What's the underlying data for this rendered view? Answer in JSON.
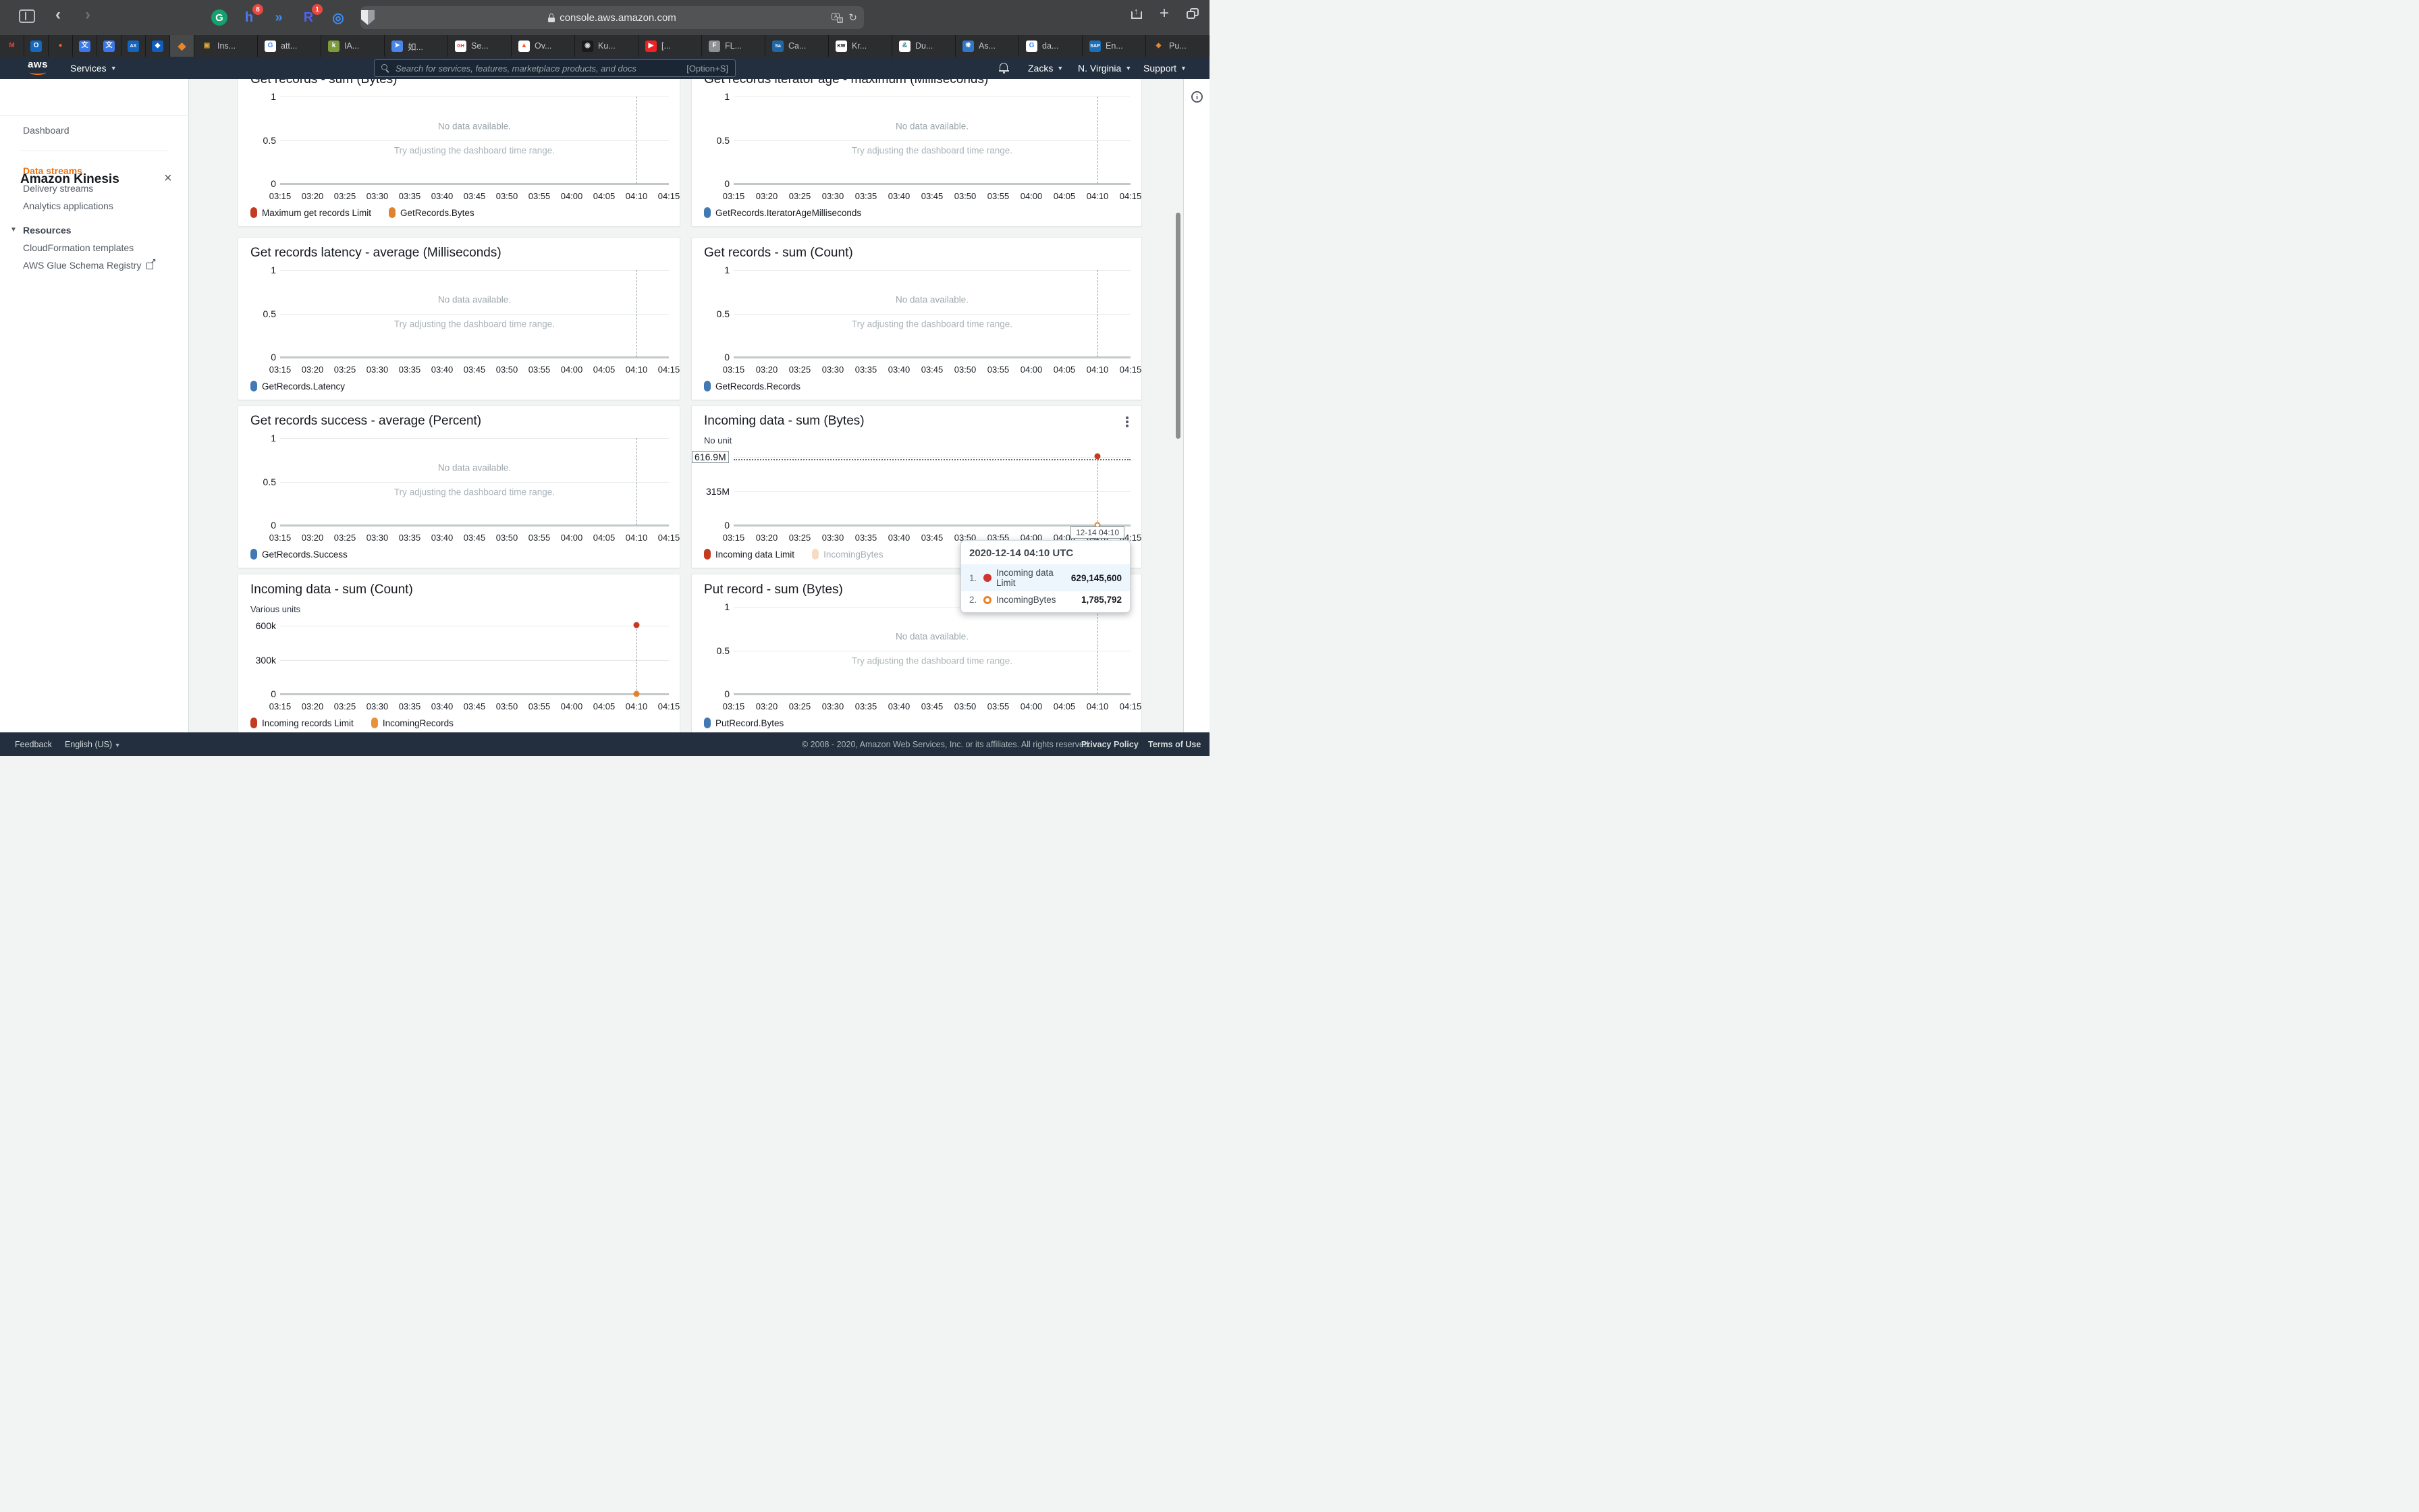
{
  "browser": {
    "url": "console.aws.amazon.com",
    "pinned_tabs": [
      {
        "name": "mail-m",
        "glyph": "M",
        "fg": "#e8453c",
        "bg": "transparent"
      },
      {
        "name": "outlook",
        "glyph": "O",
        "fg": "#ffffff",
        "bg": "#1269bf"
      },
      {
        "name": "flame",
        "glyph": "●",
        "fg": "#e8632c",
        "bg": "transparent"
      },
      {
        "name": "translate-1",
        "glyph": "文",
        "fg": "#ffffff",
        "bg": "#3b78e7"
      },
      {
        "name": "translate-2",
        "glyph": "文",
        "fg": "#ffffff",
        "bg": "#3b78e7"
      },
      {
        "name": "amex",
        "glyph": "AX",
        "fg": "#ffffff",
        "bg": "#1465c0"
      },
      {
        "name": "chase",
        "glyph": "◆",
        "fg": "#ffffff",
        "bg": "#0f5dbc"
      }
    ],
    "active_tab": {
      "name": "aws-console-active",
      "glyph": "◆",
      "fg": "#e8862c",
      "bg": "transparent"
    },
    "tabs": [
      {
        "label": "Ins...",
        "glyph": "▣",
        "fg": "#d9a43b",
        "bg": "transparent"
      },
      {
        "label": "att...",
        "glyph": "G",
        "fg": "#4285f4",
        "bg": "#ffffff"
      },
      {
        "label": "IA...",
        "glyph": "k",
        "fg": "#ffffff",
        "bg": "#7c9c3c"
      },
      {
        "label": "如...",
        "glyph": "➤",
        "fg": "#ffffff",
        "bg": "#4a86e8"
      },
      {
        "label": "Se...",
        "glyph": "GH",
        "fg": "#e0301e",
        "bg": "#ffffff"
      },
      {
        "label": "Ov...",
        "glyph": "▲",
        "fg": "#f2662c",
        "bg": "#ffffff"
      },
      {
        "label": "Ku...",
        "glyph": "◉",
        "fg": "#dddddd",
        "bg": "#1a1a1a"
      },
      {
        "label": "[...",
        "glyph": "▶",
        "fg": "#ffffff",
        "bg": "#ee2222"
      },
      {
        "label": "FL...",
        "glyph": "F",
        "fg": "#ffffff",
        "bg": "#8e9094"
      },
      {
        "label": "Ca...",
        "glyph": "Sa",
        "fg": "#ffffff",
        "bg": "#2166a3"
      },
      {
        "label": "Kr...",
        "glyph": "KW",
        "fg": "#000000",
        "bg": "#ffffff"
      },
      {
        "label": "Du...",
        "glyph": "&",
        "fg": "#2e7d8c",
        "bg": "#ffffff"
      },
      {
        "label": "As...",
        "glyph": "❋",
        "fg": "#ffffff",
        "bg": "#3079c7"
      },
      {
        "label": "da...",
        "glyph": "G",
        "fg": "#4285f4",
        "bg": "#ffffff"
      },
      {
        "label": "En...",
        "glyph": "SAP",
        "fg": "#ffffff",
        "bg": "#1b70b8"
      },
      {
        "label": "Pu...",
        "glyph": "◆",
        "fg": "#e8862c",
        "bg": "transparent"
      }
    ],
    "extensions": [
      {
        "name": "grammarly",
        "glyph": "G",
        "fg": "#ffffff",
        "bg": "#15a06e",
        "badge": "",
        "shape": "disc"
      },
      {
        "name": "honey",
        "glyph": "h",
        "fg": "#4b7bf5",
        "bg": "transparent",
        "badge": "8",
        "shape": "glyph"
      },
      {
        "name": "autoplay",
        "glyph": "»",
        "fg": "#3f8cf3",
        "bg": "transparent",
        "badge": "",
        "shape": "glyph"
      },
      {
        "name": "rakuten",
        "glyph": "R",
        "fg": "#4f63f2",
        "bg": "transparent",
        "badge": "1",
        "shape": "glyph"
      },
      {
        "name": "ring",
        "glyph": "◎",
        "fg": "#3f8cf3",
        "bg": "transparent",
        "badge": "",
        "shape": "glyph"
      },
      {
        "name": "shield",
        "glyph": "",
        "fg": "#b9bcc0",
        "bg": "transparent",
        "badge": "",
        "shape": "shield"
      }
    ]
  },
  "aws_nav": {
    "services": "Services",
    "search_placeholder": "Search for services, features, marketplace products, and docs",
    "shortcut": "[Option+S]",
    "account": "Zacks",
    "region": "N. Virginia",
    "support": "Support"
  },
  "sidebar": {
    "title": "Amazon Kinesis",
    "close": "×",
    "dashboard": "Dashboard",
    "data_streams": "Data streams",
    "delivery_streams": "Delivery streams",
    "analytics": "Analytics applications",
    "resources": "Resources",
    "cloudformation": "CloudFormation templates",
    "glue": "AWS Glue Schema Registry"
  },
  "empty_state": {
    "line1": "No data available.",
    "line2": "Try adjusting the dashboard time range."
  },
  "time_axis": [
    "03:15",
    "03:20",
    "03:25",
    "03:30",
    "03:35",
    "03:40",
    "03:45",
    "03:50",
    "03:55",
    "04:00",
    "04:05",
    "04:10",
    "04:15"
  ],
  "chart_data": [
    {
      "type": "line",
      "title": "Get records - sum (Bytes)",
      "y_ticks": [
        "1",
        "0.5",
        "0"
      ],
      "empty": true,
      "legend": [
        {
          "label": "Maximum get records Limit",
          "color": "#c43b22"
        },
        {
          "label": "GetRecords.Bytes",
          "color": "#e0832f"
        }
      ]
    },
    {
      "type": "line",
      "title": "Get records iterator age - maximum (Milliseconds)",
      "y_ticks": [
        "1",
        "0.5",
        "0"
      ],
      "empty": true,
      "legend": [
        {
          "label": "GetRecords.IteratorAgeMilliseconds",
          "color": "#4179b4"
        }
      ]
    },
    {
      "type": "line",
      "title": "Get records latency - average (Milliseconds)",
      "y_ticks": [
        "1",
        "0.5",
        "0"
      ],
      "empty": true,
      "legend": [
        {
          "label": "GetRecords.Latency",
          "color": "#4179b4"
        }
      ]
    },
    {
      "type": "line",
      "title": "Get records - sum (Count)",
      "y_ticks": [
        "1",
        "0.5",
        "0"
      ],
      "empty": true,
      "legend": [
        {
          "label": "GetRecords.Records",
          "color": "#4179b4"
        }
      ]
    },
    {
      "type": "line",
      "title": "Get records success - average (Percent)",
      "y_ticks": [
        "1",
        "0.5",
        "0"
      ],
      "empty": true,
      "legend": [
        {
          "label": "GetRecords.Success",
          "color": "#4179b4"
        }
      ]
    },
    {
      "type": "line",
      "title": "Incoming data - sum (Bytes)",
      "subtitle": "No unit",
      "menu": true,
      "y_ticks": [
        "616.9M",
        "315M",
        "0"
      ],
      "boxed_first_tick": true,
      "empty": false,
      "limit_line": true,
      "ylim": [
        0,
        629145600
      ],
      "series": [
        {
          "name": "Incoming data Limit",
          "color": "#c43b22",
          "x": "04:10",
          "value": 629145600,
          "pos": "top",
          "style": "filled"
        },
        {
          "name": "IncomingBytes",
          "color": "#e0832f",
          "x": "04:10",
          "value": 1785792,
          "pos": "bottom",
          "style": "ring"
        }
      ],
      "marker_label": "12-14 04:10",
      "legend": [
        {
          "label": "Incoming data Limit",
          "color": "#c43b22"
        },
        {
          "label": "IncomingBytes",
          "color": "#f6dcc2",
          "faded": true
        }
      ]
    },
    {
      "type": "line",
      "title": "Incoming data - sum (Count)",
      "subtitle": "Various units",
      "y_ticks": [
        "600k",
        "300k",
        "0"
      ],
      "empty": false,
      "ylim": [
        0,
        600000
      ],
      "series": [
        {
          "name": "Incoming records Limit",
          "color": "#c43b22",
          "x": "04:10",
          "value": 600000,
          "pos": "top",
          "style": "filled"
        },
        {
          "name": "IncomingRecords",
          "color": "#e0832f",
          "x": "04:10",
          "value": 0,
          "pos": "bottom",
          "style": "filled"
        }
      ],
      "legend": [
        {
          "label": "Incoming records Limit",
          "color": "#c43b22"
        },
        {
          "label": "IncomingRecords",
          "color": "#e8923a"
        }
      ]
    },
    {
      "type": "line",
      "title": "Put record - sum (Bytes)",
      "y_ticks": [
        "1",
        "0.5",
        "0"
      ],
      "empty": true,
      "legend": [
        {
          "label": "PutRecord.Bytes",
          "color": "#4179b4"
        }
      ]
    }
  ],
  "tooltip": {
    "title": "2020-12-14 04:10 UTC",
    "rows": [
      {
        "index": "1.",
        "style": "filled",
        "color": "#d0342c",
        "label": "Incoming data Limit",
        "value": "629,145,600",
        "highlight": true
      },
      {
        "index": "2.",
        "style": "ring",
        "color": "#e8842c",
        "label": "IncomingBytes",
        "value": "1,785,792",
        "highlight": false
      }
    ]
  },
  "footer": {
    "feedback": "Feedback",
    "language": "English (US)",
    "copyright": "© 2008 - 2020, Amazon Web Services, Inc. or its affiliates. All rights reserved.",
    "privacy": "Privacy Policy",
    "terms": "Terms of Use"
  }
}
